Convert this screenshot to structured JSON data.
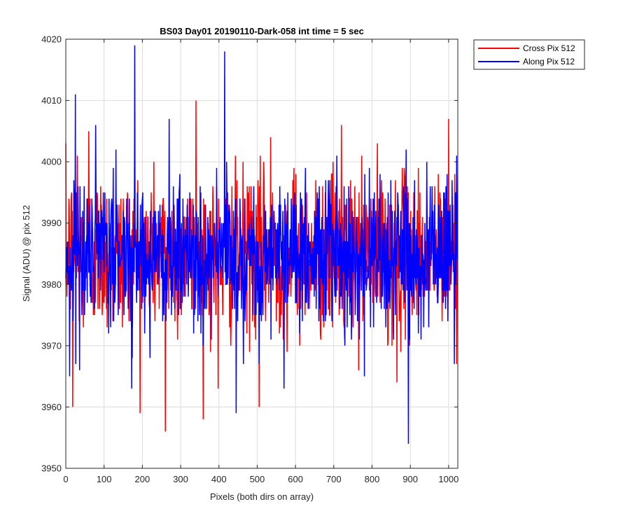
{
  "chart_data": {
    "type": "line",
    "title": "BS03 Day01 20190110-Dark-058 int time = 5 sec",
    "xlabel": "Pixels (both dirs on array)",
    "ylabel": "Signal (ADU) @ pix 512",
    "xlim": [
      0,
      1024
    ],
    "ylim": [
      3950,
      4020
    ],
    "xticks": [
      0,
      100,
      200,
      300,
      400,
      500,
      600,
      700,
      800,
      900,
      1000
    ],
    "yticks": [
      3950,
      3960,
      3970,
      3980,
      3990,
      4000,
      4010,
      4020
    ],
    "grid": true,
    "legend_position": "outside top-right",
    "series": [
      {
        "name": "Cross Pix 512",
        "color": "#ff0000",
        "mean": 3985,
        "noise_sd": 6.5,
        "n_points": 1024,
        "notable_points": [
          [
            18,
            3960
          ],
          [
            30,
            4001
          ],
          [
            60,
            4005
          ],
          [
            180,
            4008
          ],
          [
            260,
            3956
          ],
          [
            340,
            4010
          ],
          [
            398,
            3963
          ],
          [
            505,
            3960
          ],
          [
            535,
            4004
          ],
          [
            720,
            4006
          ],
          [
            865,
            3964
          ],
          [
            1000,
            4007
          ]
        ]
      },
      {
        "name": "Along Pix 512",
        "color": "#0000ff",
        "mean": 3985,
        "noise_sd": 6.0,
        "n_points": 1024,
        "notable_points": [
          [
            10,
            3965
          ],
          [
            25,
            4011
          ],
          [
            180,
            4019
          ],
          [
            270,
            4007
          ],
          [
            415,
            4018
          ],
          [
            445,
            3959
          ],
          [
            505,
            3967
          ],
          [
            570,
            3963
          ],
          [
            780,
            3965
          ],
          [
            895,
            3954
          ],
          [
            1015,
            3967
          ]
        ]
      }
    ]
  }
}
